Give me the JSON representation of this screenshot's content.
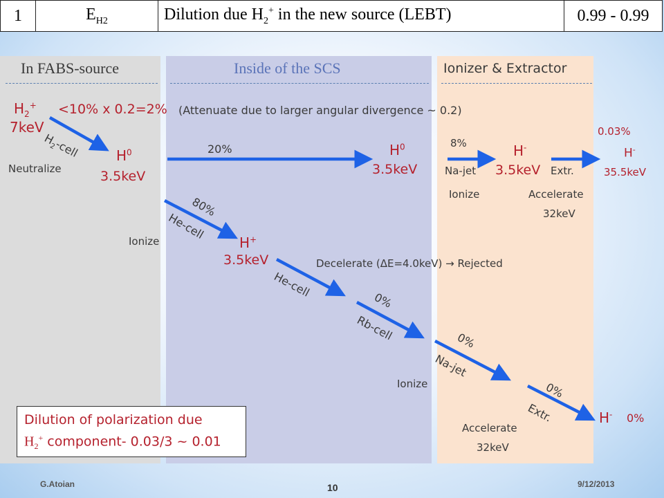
{
  "header": {
    "number": "1",
    "species_main": "E",
    "species_sub": "H2",
    "desc_main": "Dilution due H",
    "desc_sub": "2",
    "desc_sup": "+",
    "desc_tail": " in the new source (LEBT)",
    "value": "0.99 - 0.99"
  },
  "sections": {
    "fabs": "In FABS-source",
    "scs": "Inside of the SCS",
    "ionizer": "Ionizer & Extractor"
  },
  "h2_plus": {
    "main": "H",
    "sub": "2",
    "sup": "+",
    "energy": "7keV"
  },
  "top_fraction": "<10% x 0.2=2%",
  "attenuate_note": "(Attenuate due to larger angular divergence ~ 0.2)",
  "h2cell": {
    "main": "H",
    "sub": "2",
    "tail": "-cell"
  },
  "neutralize": "Neutralize",
  "h0_first": {
    "main": "H",
    "sup": "0",
    "energy": "3.5keV"
  },
  "pct_20": "20%",
  "h0_second": {
    "main": "H",
    "sup": "0",
    "energy": "3.5keV"
  },
  "pct_8": "8%",
  "na_jet_top": "Na-jet",
  "ionize_top": "Ionize",
  "hminus_mid": {
    "main": "H",
    "sup": "-",
    "energy": "3.5keV"
  },
  "extr_top": "Extr.",
  "accelerate_top": "Accelerate",
  "kev32_top": "32keV",
  "pct_003": "0.03%",
  "hminus_final": {
    "main": "H",
    "sup": "-",
    "energy": "35.5keV"
  },
  "pct_80": "80%",
  "he_cell_1": "He-cell",
  "ionize_left": "Ionize",
  "h_plus": {
    "main": "H",
    "sup": "+",
    "energy": "3.5keV"
  },
  "decelerate": "Decelerate (ΔE=4.0keV)  →  Rejected",
  "he_cell_2": "He-cell",
  "pct_0_rb": "0%",
  "rb_cell": "Rb-cell",
  "pct_0_na": "0%",
  "na_jet_low": "Na-jet",
  "ionize_low": "Ionize",
  "pct_0_extr": "0%",
  "extr_low": "Extr.",
  "accelerate_low": "Accelerate",
  "kev32_low": "32keV",
  "hminus_bottom": {
    "main": "H",
    "sup": "-",
    "pct": "0%"
  },
  "dilution_box": {
    "line1": "Dilution of polarization due",
    "h": "H",
    "sub": "2",
    "sup": "+",
    "line2_tail": " component- 0.03/3 ~ 0.01"
  },
  "footer": {
    "author": "G.Atoian",
    "page": "10",
    "date": "9/12/2013"
  },
  "colors": {
    "arrow": "#1e62e6",
    "red_text": "#b5212d",
    "fabs_panel": "#dcdcdc",
    "scs_panel": "#c9cde7",
    "ionizer_panel": "#fbe3cf"
  }
}
